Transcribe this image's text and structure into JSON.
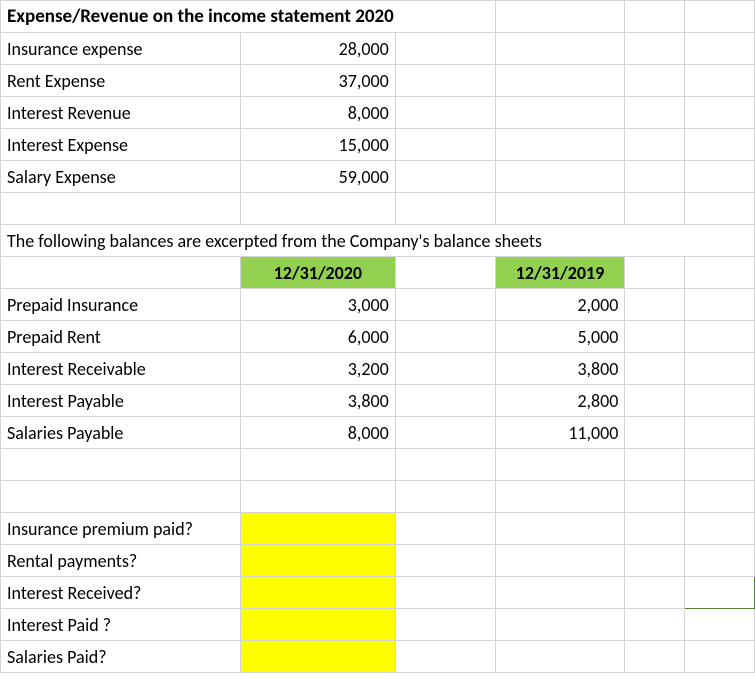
{
  "title": "Expense/Revenue on the income statement 2020",
  "income_statement": {
    "rows": [
      {
        "label": "Insurance expense",
        "value": "28,000"
      },
      {
        "label": "Rent Expense",
        "value": "37,000"
      },
      {
        "label": "Interest Revenue",
        "value": "8,000"
      },
      {
        "label": "Interest Expense",
        "value": "15,000"
      },
      {
        "label": "Salary Expense",
        "value": "59,000"
      }
    ]
  },
  "balance_note": "The following balances are excerpted from the Company's balance sheets",
  "balance_headers": {
    "col1": "12/31/2020",
    "col2": "12/31/2019"
  },
  "balance_rows": [
    {
      "label": "Prepaid Insurance",
      "v2020": "3,000",
      "v2019": "2,000"
    },
    {
      "label": "Prepaid Rent",
      "v2020": "6,000",
      "v2019": "5,000"
    },
    {
      "label": "Interest Receivable",
      "v2020": "3,200",
      "v2019": "3,800"
    },
    {
      "label": "Interest Payable",
      "v2020": "3,800",
      "v2019": "2,800"
    },
    {
      "label": "Salaries Payable",
      "v2020": "8,000",
      "v2019": "11,000"
    }
  ],
  "questions": [
    "Insurance premium paid?",
    "Rental payments?",
    "Interest Received?",
    "Interest Paid ?",
    "Salaries Paid?"
  ],
  "colors": {
    "header_fill": "#92d050",
    "highlight_fill": "#ffff00",
    "gridline": "#d4d4d4",
    "selection_border": "#548235"
  }
}
